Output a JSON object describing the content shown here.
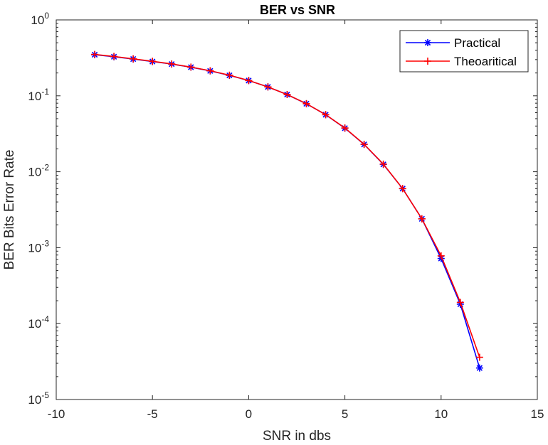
{
  "chart_data": {
    "type": "line",
    "title": "BER vs SNR",
    "xlabel": "SNR in dbs",
    "ylabel": "BER Bits Error Rate",
    "xlim": [
      -10,
      15
    ],
    "ylim": [
      1e-05,
      1
    ],
    "yscale": "log",
    "grid": false,
    "legend_position": "top-right",
    "x_ticks": [
      "-10",
      "-5",
      "0",
      "5",
      "10",
      "15"
    ],
    "x_tick_values": [
      -10,
      -5,
      0,
      5,
      10,
      15
    ],
    "y_ticks": [
      {
        "value": 1,
        "base": "10",
        "exp": "0"
      },
      {
        "value": 0.1,
        "base": "10",
        "exp": "-1"
      },
      {
        "value": 0.01,
        "base": "10",
        "exp": "-2"
      },
      {
        "value": 0.001,
        "base": "10",
        "exp": "-3"
      },
      {
        "value": 0.0001,
        "base": "10",
        "exp": "-4"
      },
      {
        "value": 1e-05,
        "base": "10",
        "exp": "-5"
      }
    ],
    "x": [
      -8,
      -7,
      -6,
      -5,
      -4,
      -3,
      -2,
      -1,
      0,
      1,
      2,
      3,
      4,
      5,
      6,
      7,
      8,
      9,
      10,
      11,
      12
    ],
    "series": [
      {
        "name": "Practical",
        "color": "#0000ff",
        "marker": "asterisk",
        "values": [
          0.348,
          0.327,
          0.305,
          0.283,
          0.262,
          0.238,
          0.213,
          0.186,
          0.159,
          0.131,
          0.104,
          0.0786,
          0.0564,
          0.0375,
          0.0229,
          0.0125,
          0.006,
          0.0024,
          0.00072,
          0.00018,
          2.6e-05
        ]
      },
      {
        "name": "Theoaritical",
        "color": "#ff0000",
        "marker": "plus",
        "values": [
          0.351,
          0.33,
          0.307,
          0.285,
          0.263,
          0.239,
          0.214,
          0.187,
          0.159,
          0.131,
          0.104,
          0.0789,
          0.0565,
          0.0377,
          0.023,
          0.0126,
          0.006,
          0.0024,
          0.00078,
          0.00019,
          3.6e-05
        ]
      }
    ]
  }
}
